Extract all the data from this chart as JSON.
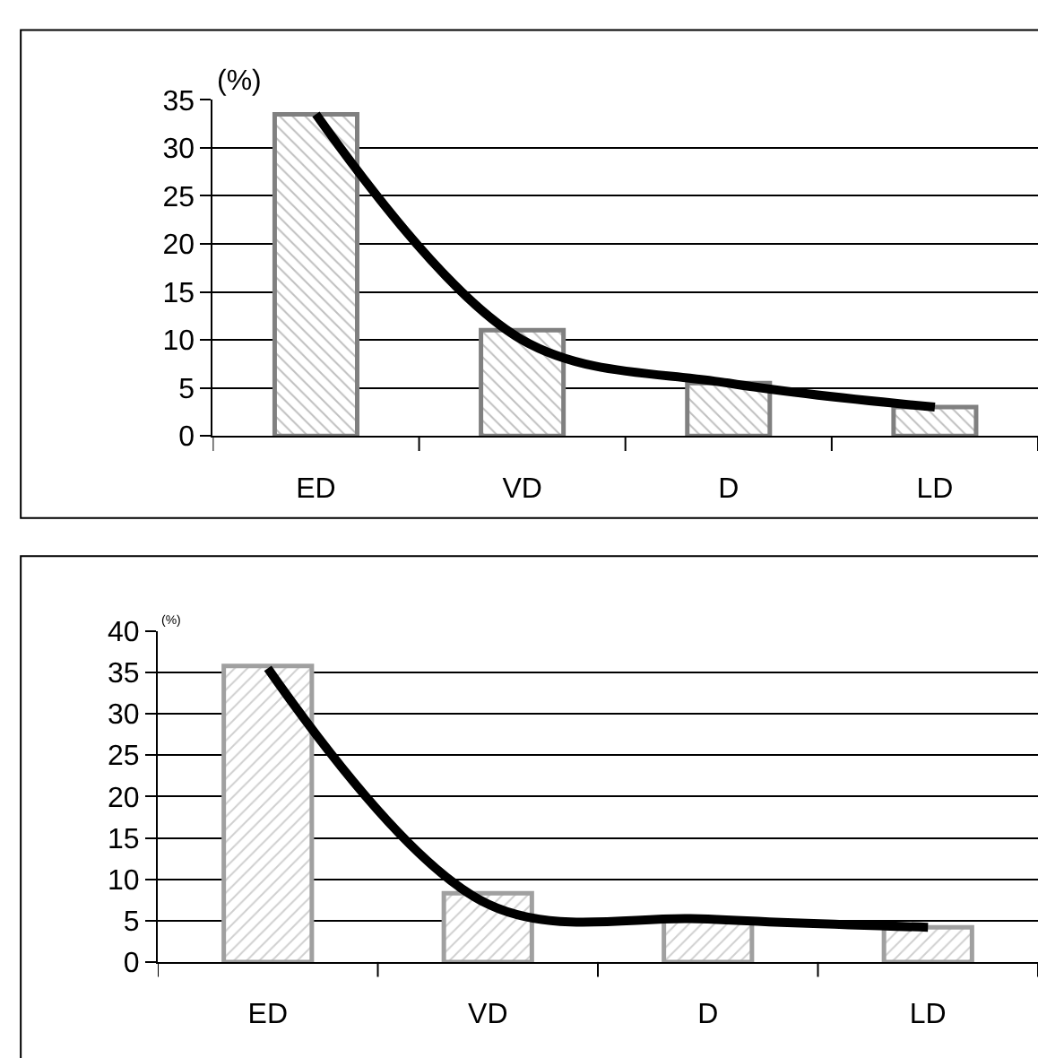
{
  "chart_data": [
    {
      "type": "bar",
      "ylabel": "(%)",
      "categories": [
        "ED",
        "VD",
        "D",
        "LD"
      ],
      "ylim": [
        0,
        35
      ],
      "yticks": [
        0,
        5,
        10,
        15,
        20,
        25,
        30,
        35
      ],
      "grid": "y",
      "series": [
        {
          "color": "#808080",
          "values": [
            33.5,
            11,
            5.5,
            3
          ]
        },
        {
          "type": "line",
          "color": "#000000",
          "values": [
            33.5,
            10,
            5.5,
            3
          ],
          "marker": "none",
          "line_style": "solid"
        }
      ]
    },
    {
      "type": "bar",
      "ylabel": "(%)",
      "categories": [
        "ED",
        "VD",
        "D",
        "LD"
      ],
      "ylim": [
        0,
        40
      ],
      "yticks": [
        0,
        5,
        10,
        15,
        20,
        25,
        30,
        35,
        40
      ],
      "grid": "y",
      "series": [
        {
          "color": "#a0a0a0",
          "values": [
            35.8,
            8.3,
            5,
            4.2
          ]
        },
        {
          "type": "line",
          "color": "#000000",
          "values": [
            35.5,
            7,
            5.2,
            4.2
          ],
          "marker": "none",
          "line_style": "solid"
        }
      ]
    }
  ]
}
